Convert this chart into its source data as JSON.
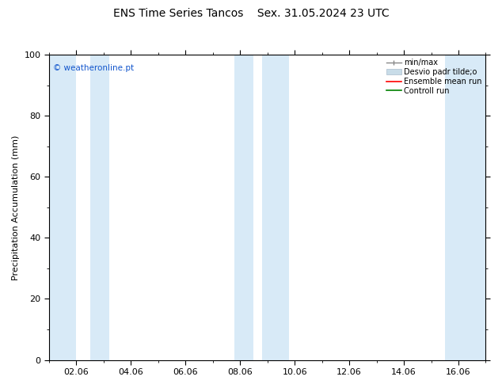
{
  "title": "ENS Time Series Tancos    Sex. 31.05.2024 23 UTC",
  "ylabel": "Precipitation Accumulation (mm)",
  "watermark": "© weatheronline.pt",
  "ylim": [
    0,
    100
  ],
  "yticks": [
    0,
    20,
    40,
    60,
    80,
    100
  ],
  "xlim": [
    1,
    17
  ],
  "xtick_labels": [
    "02.06",
    "04.06",
    "06.06",
    "08.06",
    "10.06",
    "12.06",
    "14.06",
    "16.06"
  ],
  "xtick_positions": [
    2,
    4,
    6,
    8,
    10,
    12,
    14,
    16
  ],
  "shaded_bands": [
    {
      "x_start": 1.0,
      "x_end": 2.0,
      "color": "#d8eaf7"
    },
    {
      "x_start": 2.5,
      "x_end": 3.2,
      "color": "#d8eaf7"
    },
    {
      "x_start": 7.8,
      "x_end": 8.5,
      "color": "#d8eaf7"
    },
    {
      "x_start": 8.8,
      "x_end": 9.8,
      "color": "#d8eaf7"
    },
    {
      "x_start": 15.5,
      "x_end": 17.0,
      "color": "#d8eaf7"
    }
  ],
  "legend_labels": [
    "min/max",
    "Desvio padr tilde;o",
    "Ensemble mean run",
    "Controll run"
  ],
  "legend_colors": [
    "#aaaaaa",
    "#c8dce8",
    "red",
    "green"
  ],
  "background_color": "#ffffff",
  "title_fontsize": 10,
  "tick_fontsize": 8,
  "ylabel_fontsize": 8,
  "watermark_color": "#1155cc",
  "watermark_fontsize": 7.5,
  "legend_fontsize": 7
}
